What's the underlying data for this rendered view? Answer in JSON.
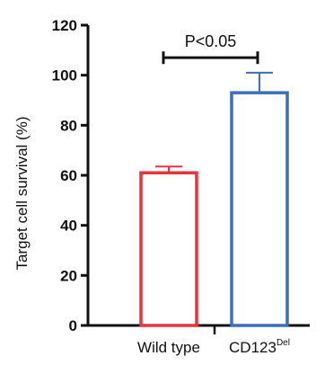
{
  "chart_data": {
    "type": "bar",
    "categories": [
      "Wild type",
      "CD123"
    ],
    "category_superscripts": [
      "",
      "Del"
    ],
    "values": [
      61,
      93
    ],
    "errors": [
      2.5,
      8
    ],
    "bar_colors": [
      "#e8323c",
      "#3d6fb8"
    ],
    "ylabel": "Target cell survival (%)",
    "ylim": [
      0,
      120
    ],
    "yticks": [
      0,
      20,
      40,
      60,
      80,
      100,
      120
    ],
    "grid": false,
    "annotation": {
      "text": "P<0.05",
      "between": [
        0,
        1
      ],
      "y": 107
    }
  }
}
